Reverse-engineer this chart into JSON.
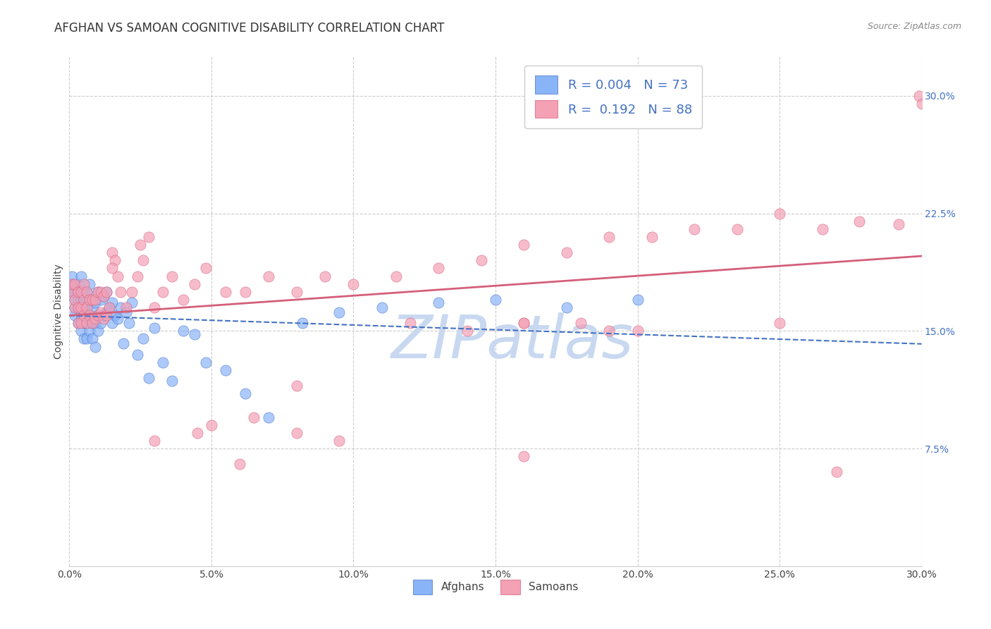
{
  "title": "AFGHAN VS SAMOAN COGNITIVE DISABILITY CORRELATION CHART",
  "source": "Source: ZipAtlas.com",
  "ylabel": "Cognitive Disability",
  "xlim": [
    0.0,
    0.3
  ],
  "ylim": [
    0.0,
    0.325
  ],
  "yticks": [
    0.075,
    0.15,
    0.225,
    0.3
  ],
  "ytick_labels": [
    "7.5%",
    "15.0%",
    "22.5%",
    "30.0%"
  ],
  "xticks": [
    0.0,
    0.05,
    0.1,
    0.15,
    0.2,
    0.25,
    0.3
  ],
  "xtick_labels": [
    "0.0%",
    "5.0%",
    "10.0%",
    "15.0%",
    "20.0%",
    "25.0%",
    "30.0%"
  ],
  "afghan_color": "#8ab4f8",
  "samoan_color": "#f4a0b5",
  "afghan_line_color": "#4472c4",
  "samoan_line_color": "#d45f7a",
  "background_color": "#ffffff",
  "watermark_text": "ZIPatlas",
  "watermark_color": "#c8d8f0",
  "grid_color": "#cccccc",
  "title_fontsize": 12,
  "axis_label_fontsize": 10,
  "tick_label_fontsize": 10,
  "legend_fontsize": 13,
  "afghans_x": [
    0.001,
    0.001,
    0.001,
    0.002,
    0.002,
    0.002,
    0.002,
    0.003,
    0.003,
    0.003,
    0.003,
    0.003,
    0.004,
    0.004,
    0.004,
    0.004,
    0.004,
    0.005,
    0.005,
    0.005,
    0.005,
    0.006,
    0.006,
    0.006,
    0.006,
    0.007,
    0.007,
    0.007,
    0.007,
    0.008,
    0.008,
    0.008,
    0.009,
    0.009,
    0.009,
    0.01,
    0.01,
    0.01,
    0.011,
    0.011,
    0.012,
    0.012,
    0.013,
    0.013,
    0.014,
    0.015,
    0.015,
    0.016,
    0.017,
    0.018,
    0.019,
    0.02,
    0.021,
    0.022,
    0.024,
    0.026,
    0.028,
    0.03,
    0.033,
    0.036,
    0.04,
    0.044,
    0.048,
    0.055,
    0.062,
    0.07,
    0.082,
    0.095,
    0.11,
    0.13,
    0.15,
    0.175,
    0.2
  ],
  "afghans_y": [
    0.175,
    0.18,
    0.185,
    0.165,
    0.17,
    0.175,
    0.16,
    0.155,
    0.165,
    0.175,
    0.18,
    0.17,
    0.15,
    0.16,
    0.17,
    0.175,
    0.185,
    0.145,
    0.155,
    0.165,
    0.175,
    0.145,
    0.155,
    0.165,
    0.175,
    0.15,
    0.16,
    0.17,
    0.18,
    0.145,
    0.155,
    0.165,
    0.14,
    0.155,
    0.168,
    0.15,
    0.16,
    0.175,
    0.155,
    0.17,
    0.16,
    0.172,
    0.162,
    0.175,
    0.165,
    0.155,
    0.168,
    0.16,
    0.158,
    0.165,
    0.142,
    0.162,
    0.155,
    0.168,
    0.135,
    0.145,
    0.12,
    0.152,
    0.13,
    0.118,
    0.15,
    0.148,
    0.13,
    0.125,
    0.11,
    0.095,
    0.155,
    0.162,
    0.165,
    0.168,
    0.17,
    0.165,
    0.17
  ],
  "samoans_x": [
    0.001,
    0.001,
    0.002,
    0.002,
    0.002,
    0.003,
    0.003,
    0.003,
    0.004,
    0.004,
    0.004,
    0.005,
    0.005,
    0.005,
    0.006,
    0.006,
    0.006,
    0.007,
    0.007,
    0.008,
    0.008,
    0.009,
    0.009,
    0.01,
    0.01,
    0.011,
    0.011,
    0.012,
    0.012,
    0.013,
    0.013,
    0.014,
    0.015,
    0.016,
    0.017,
    0.018,
    0.02,
    0.022,
    0.024,
    0.026,
    0.028,
    0.03,
    0.033,
    0.036,
    0.04,
    0.044,
    0.048,
    0.055,
    0.062,
    0.07,
    0.08,
    0.09,
    0.1,
    0.115,
    0.13,
    0.145,
    0.16,
    0.175,
    0.19,
    0.205,
    0.22,
    0.235,
    0.25,
    0.265,
    0.278,
    0.292,
    0.299,
    0.3,
    0.12,
    0.14,
    0.16,
    0.18,
    0.2,
    0.05,
    0.065,
    0.08,
    0.095,
    0.03,
    0.045,
    0.16,
    0.25,
    0.19,
    0.08,
    0.06,
    0.16,
    0.27,
    0.015,
    0.025
  ],
  "samoans_y": [
    0.175,
    0.18,
    0.165,
    0.17,
    0.18,
    0.155,
    0.165,
    0.175,
    0.155,
    0.165,
    0.175,
    0.16,
    0.17,
    0.18,
    0.155,
    0.165,
    0.175,
    0.16,
    0.17,
    0.155,
    0.17,
    0.158,
    0.17,
    0.16,
    0.175,
    0.162,
    0.175,
    0.158,
    0.172,
    0.16,
    0.175,
    0.165,
    0.2,
    0.195,
    0.185,
    0.175,
    0.165,
    0.175,
    0.185,
    0.195,
    0.21,
    0.165,
    0.175,
    0.185,
    0.17,
    0.18,
    0.19,
    0.175,
    0.175,
    0.185,
    0.175,
    0.185,
    0.18,
    0.185,
    0.19,
    0.195,
    0.205,
    0.2,
    0.21,
    0.21,
    0.215,
    0.215,
    0.225,
    0.215,
    0.22,
    0.218,
    0.3,
    0.295,
    0.155,
    0.15,
    0.155,
    0.155,
    0.15,
    0.09,
    0.095,
    0.085,
    0.08,
    0.08,
    0.085,
    0.155,
    0.155,
    0.15,
    0.115,
    0.065,
    0.07,
    0.06,
    0.19,
    0.205
  ]
}
